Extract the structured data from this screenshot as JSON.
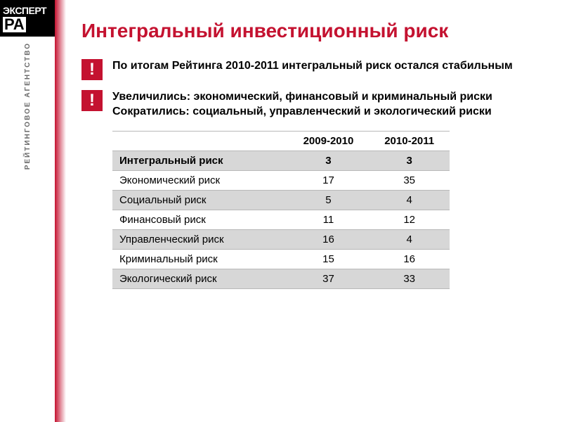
{
  "logo": {
    "expert": "ЭКСПЕРТ",
    "ra": "РА",
    "agency": "РЕЙТИНГОВОЕ АГЕНТСТВО"
  },
  "title": "Интегральный инвестиционный риск",
  "callouts": [
    {
      "bang": "!",
      "text": "По итогам Рейтинга 2010-2011 интегральный риск остался стабильным"
    },
    {
      "bang": "!",
      "text": "Увеличились: экономический, финансовый и криминальный риски\nСократились: социальный, управленческий и экологический риски"
    }
  ],
  "table": {
    "columns": [
      "",
      "2009-2010",
      "2010-2011"
    ],
    "rows": [
      [
        "Интегральный риск",
        "3",
        "3"
      ],
      [
        "Экономический риск",
        "17",
        "35"
      ],
      [
        "Социальный риск",
        "5",
        "4"
      ],
      [
        "Финансовый риск",
        "11",
        "12"
      ],
      [
        "Управленческий риск",
        "16",
        "4"
      ],
      [
        "Криминальный риск",
        "15",
        "16"
      ],
      [
        "Экологический риск",
        "37",
        "33"
      ]
    ],
    "header_bg": "#ffffff",
    "row_odd_bg": "#d7d7d7",
    "border_color": "#b8b8b8",
    "font_size": 15
  },
  "colors": {
    "accent": "#c41230",
    "text": "#000000"
  }
}
